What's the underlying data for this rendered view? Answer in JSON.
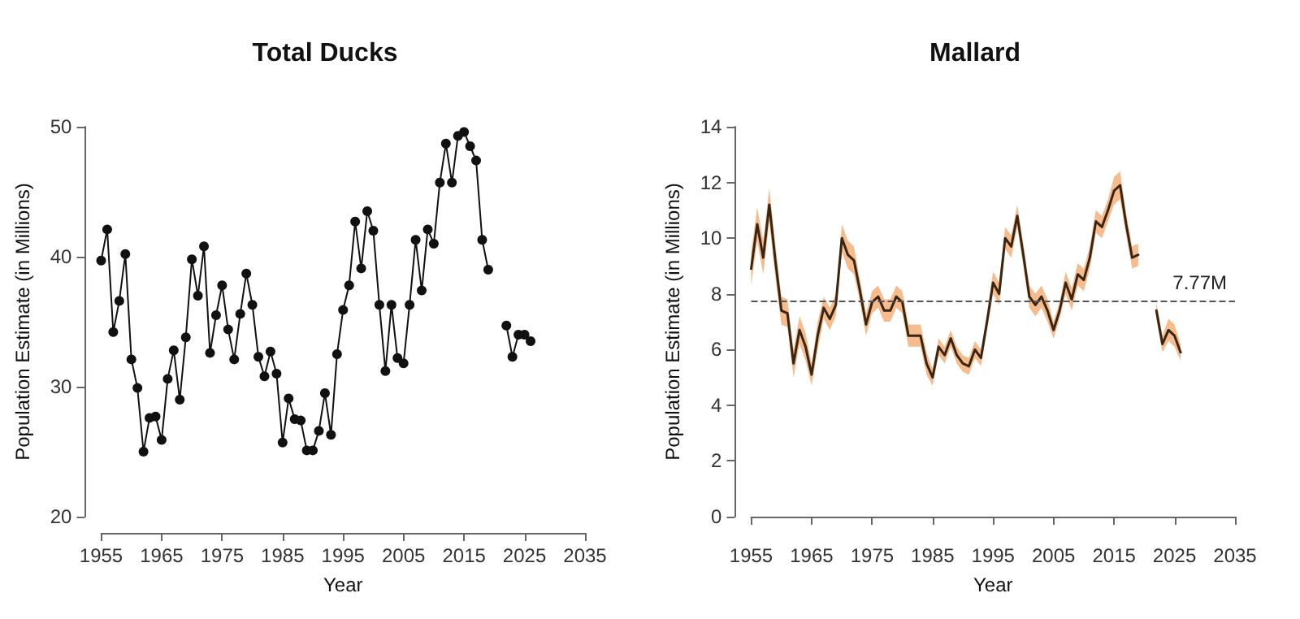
{
  "chart_data": [
    {
      "type": "line",
      "title": "Total Ducks",
      "xlabel": "Year",
      "ylabel": "Population Estimate (in Millions)",
      "xlim": [
        1955,
        2035
      ],
      "xticks": [
        1955,
        1965,
        1975,
        1985,
        1995,
        2005,
        2015,
        2025,
        2035
      ],
      "ylim": [
        20,
        50
      ],
      "yticks": [
        20,
        30,
        40,
        50
      ],
      "grid": false,
      "marker": "circle",
      "line_style": "solid",
      "x": [
        1955,
        1956,
        1957,
        1958,
        1959,
        1960,
        1961,
        1962,
        1963,
        1964,
        1965,
        1966,
        1967,
        1968,
        1969,
        1970,
        1971,
        1972,
        1973,
        1974,
        1975,
        1976,
        1977,
        1978,
        1979,
        1980,
        1981,
        1982,
        1983,
        1984,
        1985,
        1986,
        1987,
        1988,
        1989,
        1990,
        1991,
        1992,
        1993,
        1994,
        1995,
        1996,
        1997,
        1998,
        1999,
        2000,
        2001,
        2002,
        2003,
        2004,
        2005,
        2006,
        2007,
        2008,
        2009,
        2010,
        2011,
        2012,
        2013,
        2014,
        2015,
        2016,
        2017,
        2018,
        2019,
        2020,
        2021,
        2022,
        2023,
        2024,
        2025,
        2026
      ],
      "series": [
        {
          "color": "#111111",
          "values": [
            39.7,
            42.1,
            34.2,
            36.6,
            40.2,
            32.1,
            29.9,
            25.0,
            27.6,
            27.7,
            25.9,
            30.6,
            32.8,
            29.0,
            33.8,
            39.8,
            37.0,
            40.8,
            32.6,
            35.5,
            37.8,
            34.4,
            32.1,
            35.6,
            38.7,
            36.3,
            32.3,
            30.8,
            32.7,
            31.0,
            25.7,
            29.1,
            27.5,
            27.4,
            25.1,
            25.1,
            26.6,
            29.5,
            26.3,
            32.5,
            35.9,
            37.8,
            42.7,
            39.1,
            43.5,
            42.0,
            36.3,
            31.2,
            36.3,
            32.2,
            31.8,
            36.3,
            41.3,
            37.4,
            42.1,
            41.0,
            45.7,
            48.7,
            45.7,
            49.3,
            49.6,
            48.5,
            47.4,
            41.3,
            39.0,
            null,
            null,
            34.7,
            32.3,
            34.0,
            34.0,
            33.5
          ]
        }
      ]
    },
    {
      "type": "line",
      "title": "Mallard",
      "xlabel": "Year",
      "ylabel": "Population Estimate (in Millions)",
      "xlim": [
        1955,
        2035
      ],
      "xticks": [
        1955,
        1965,
        1975,
        1985,
        1995,
        2005,
        2015,
        2025,
        2035
      ],
      "ylim": [
        0,
        14
      ],
      "yticks": [
        0,
        2,
        4,
        6,
        8,
        10,
        12,
        14
      ],
      "grid": false,
      "marker": "none",
      "line_style": "solid",
      "x": [
        1955,
        1956,
        1957,
        1958,
        1959,
        1960,
        1961,
        1962,
        1963,
        1964,
        1965,
        1966,
        1967,
        1968,
        1969,
        1970,
        1971,
        1972,
        1973,
        1974,
        1975,
        1976,
        1977,
        1978,
        1979,
        1980,
        1981,
        1982,
        1983,
        1984,
        1985,
        1986,
        1987,
        1988,
        1989,
        1990,
        1991,
        1992,
        1993,
        1994,
        1995,
        1996,
        1997,
        1998,
        1999,
        2000,
        2001,
        2002,
        2003,
        2004,
        2005,
        2006,
        2007,
        2008,
        2009,
        2010,
        2011,
        2012,
        2013,
        2014,
        2015,
        2016,
        2017,
        2018,
        2019,
        2020,
        2021,
        2022,
        2023,
        2024,
        2025,
        2026
      ],
      "ref_lines": [
        {
          "axis": "y",
          "value": 7.77,
          "label": "7.77M",
          "color": "#555555",
          "line_style": "dashed"
        }
      ],
      "series": [
        {
          "color": "#3a2412",
          "values": [
            8.9,
            10.5,
            9.3,
            11.2,
            9.2,
            7.4,
            7.3,
            5.5,
            6.7,
            6.1,
            5.1,
            6.5,
            7.5,
            7.1,
            7.6,
            10.0,
            9.4,
            9.2,
            8.1,
            6.9,
            7.7,
            7.9,
            7.4,
            7.4,
            7.9,
            7.7,
            6.5,
            6.5,
            6.5,
            5.5,
            5.0,
            6.1,
            5.8,
            6.4,
            5.8,
            5.5,
            5.4,
            6.0,
            5.7,
            7.0,
            8.4,
            8.0,
            10.0,
            9.7,
            10.8,
            9.4,
            7.9,
            7.6,
            7.9,
            7.4,
            6.7,
            7.4,
            8.4,
            7.8,
            8.7,
            8.5,
            9.3,
            10.6,
            10.4,
            11.0,
            11.7,
            11.9,
            10.5,
            9.3,
            9.4,
            null,
            null,
            7.4,
            6.2,
            6.7,
            6.5,
            5.9
          ],
          "lower": [
            8.3,
            9.9,
            8.7,
            10.6,
            8.6,
            6.9,
            6.8,
            5.0,
            6.2,
            5.6,
            4.7,
            6.0,
            7.1,
            6.7,
            7.2,
            9.5,
            8.9,
            8.7,
            7.7,
            6.5,
            7.3,
            7.5,
            7.0,
            7.0,
            7.5,
            7.3,
            6.1,
            6.1,
            6.1,
            5.1,
            4.7,
            5.8,
            5.5,
            6.1,
            5.5,
            5.2,
            5.1,
            5.7,
            5.4,
            6.7,
            8.0,
            7.6,
            9.6,
            9.3,
            10.4,
            9.0,
            7.5,
            7.2,
            7.5,
            7.0,
            6.4,
            7.1,
            8.0,
            7.4,
            8.3,
            8.1,
            8.9,
            10.2,
            10.0,
            10.6,
            11.2,
            11.4,
            10.1,
            8.9,
            9.0,
            null,
            null,
            7.1,
            5.9,
            6.3,
            6.1,
            5.6
          ],
          "upper": [
            9.5,
            11.1,
            9.9,
            11.8,
            9.8,
            7.9,
            7.8,
            6.0,
            7.2,
            6.6,
            5.5,
            7.0,
            7.9,
            7.5,
            8.0,
            10.5,
            9.9,
            9.7,
            8.5,
            7.3,
            8.1,
            8.3,
            7.8,
            7.8,
            8.3,
            8.1,
            6.9,
            6.9,
            6.9,
            5.9,
            5.3,
            6.4,
            6.1,
            6.7,
            6.1,
            5.8,
            5.7,
            6.3,
            6.0,
            7.3,
            8.8,
            8.4,
            10.4,
            10.1,
            11.2,
            9.8,
            8.3,
            8.0,
            8.3,
            7.8,
            7.0,
            7.7,
            8.8,
            8.2,
            9.1,
            8.9,
            9.7,
            11.0,
            10.8,
            11.4,
            12.2,
            12.4,
            10.9,
            9.7,
            9.8,
            null,
            null,
            7.7,
            6.5,
            7.1,
            6.9,
            6.2
          ]
        }
      ]
    }
  ]
}
